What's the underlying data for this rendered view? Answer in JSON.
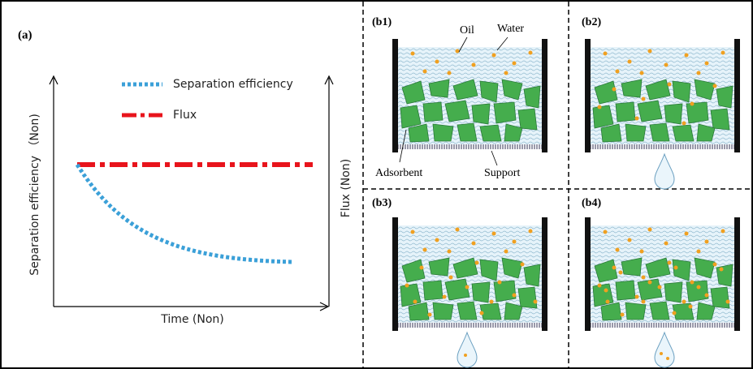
{
  "panel_a": {
    "label": "(a)",
    "legend": [
      "Separation efficiency",
      "Flux"
    ],
    "y_axis_label": "Separation efficiency （Non)",
    "y2_axis_label": "Flux (Non)",
    "x_axis_label": "Time (Non)"
  },
  "panels_b": [
    {
      "label": "(b1)"
    },
    {
      "label": "(b2)"
    },
    {
      "label": "(b3)"
    },
    {
      "label": "(b4)"
    }
  ],
  "annotations": {
    "oil": "Oil",
    "water": "Water",
    "adsorbent": "Adsorbent",
    "support": "Support"
  }
}
